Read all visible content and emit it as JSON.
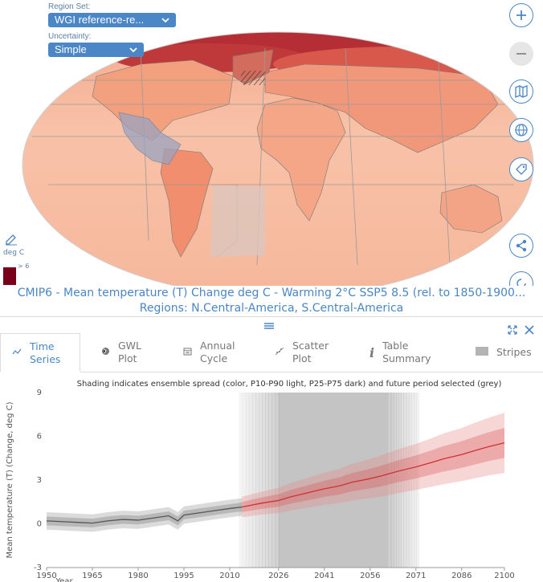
{
  "controls": {
    "region_set_label": "Region Set:",
    "region_set_value": "WGI reference-re...",
    "uncertainty_label": "Uncertainty:",
    "uncertainty_value": "Simple"
  },
  "legend": {
    "unit": "deg C",
    "top_label": "> 6",
    "top_color": "#7a0019"
  },
  "map_buttons": [
    "zoom-in-icon",
    "zoom-out-icon",
    "map-icon",
    "globe-icon",
    "tag-icon",
    "share-icon",
    "reload-icon"
  ],
  "caption": {
    "line1": "CMIP6 - Mean temperature (T) Change deg C - Warming 2°C SSP5 8.5 (rel. to 1850-1900...",
    "line2": "Regions: N.Central-America, S.Central-America"
  },
  "panel": {
    "tabs": [
      {
        "icon": "time-series-icon",
        "label": "Time\nSeries",
        "active": true
      },
      {
        "icon": "globe-icon",
        "label": "GWL\nPlot",
        "active": false
      },
      {
        "icon": "calendar-icon",
        "label": "Annual\nCycle",
        "active": false
      },
      {
        "icon": "scatter-icon",
        "label": "Scatter\nPlot",
        "active": false
      },
      {
        "icon": "info-icon",
        "label": "Table\nSummary",
        "active": false
      },
      {
        "icon": "stripes-icon",
        "label": "Stripes",
        "active": false
      }
    ]
  },
  "chart_data": {
    "type": "line",
    "title": "Shading indicates ensemble spread (color, P10-P90 light, P25-P75 dark) and future period selected (grey)",
    "xlabel": "Year",
    "ylabel": "Mean temperature (T) (Change, deg C)",
    "xlim": [
      1950,
      2100
    ],
    "ylim": [
      -3,
      9
    ],
    "x_ticks": [
      "1950",
      "1965",
      "1980",
      "1995",
      "2010",
      "2026",
      "2041",
      "2056",
      "2071",
      "2086",
      "2100"
    ],
    "y_ticks": [
      "-3",
      "0",
      "3",
      "6",
      "9"
    ],
    "historical_color": "#555555",
    "future_color": "#cc3333",
    "selected_period": [
      2013,
      2072
    ],
    "selected_core": [
      2026,
      2062
    ],
    "series": [
      {
        "name": "historical",
        "x": [
          1950,
          1955,
          1960,
          1965,
          1970,
          1975,
          1980,
          1985,
          1990,
          1993,
          1995,
          2000,
          2005,
          2010,
          2014
        ],
        "values": [
          0.2,
          0.15,
          0.1,
          0.05,
          0.2,
          0.3,
          0.25,
          0.4,
          0.55,
          0.2,
          0.6,
          0.75,
          0.9,
          1.05,
          1.15
        ]
      },
      {
        "name": "ssp585",
        "x": [
          2014,
          2020,
          2026,
          2030,
          2035,
          2041,
          2046,
          2050,
          2056,
          2060,
          2065,
          2071,
          2076,
          2080,
          2086,
          2090,
          2095,
          2100
        ],
        "values": [
          1.15,
          1.4,
          1.6,
          1.85,
          2.1,
          2.4,
          2.6,
          2.85,
          3.1,
          3.3,
          3.6,
          3.9,
          4.2,
          4.45,
          4.75,
          5.0,
          5.3,
          5.55
        ]
      }
    ]
  }
}
